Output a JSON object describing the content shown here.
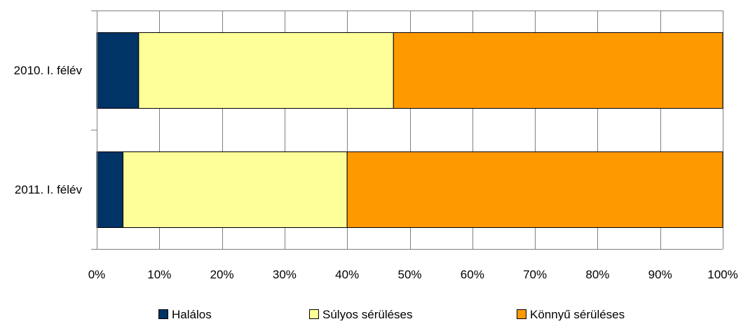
{
  "chart_data": {
    "type": "bar",
    "orientation": "horizontal",
    "stacked": "percent",
    "categories": [
      "2010. I. félév",
      "2011. I. félév"
    ],
    "series": [
      {
        "name": "Halálos",
        "values": [
          6.7,
          4.2
        ],
        "color": "#003366"
      },
      {
        "name": "Súlyos sérüléses",
        "values": [
          40.7,
          35.8
        ],
        "color": "#FFFF99"
      },
      {
        "name": "Könnyű sérüléses",
        "values": [
          52.6,
          60.0
        ],
        "color": "#FF9900"
      }
    ],
    "x_ticks": [
      "0%",
      "10%",
      "20%",
      "30%",
      "40%",
      "50%",
      "60%",
      "70%",
      "80%",
      "90%",
      "100%"
    ],
    "xlim": [
      0,
      100
    ],
    "title": "",
    "xlabel": "",
    "ylabel": "",
    "grid": true,
    "legend": "bottom",
    "colors": {
      "gridline": "#808080",
      "bar_outline": "#000000"
    }
  }
}
